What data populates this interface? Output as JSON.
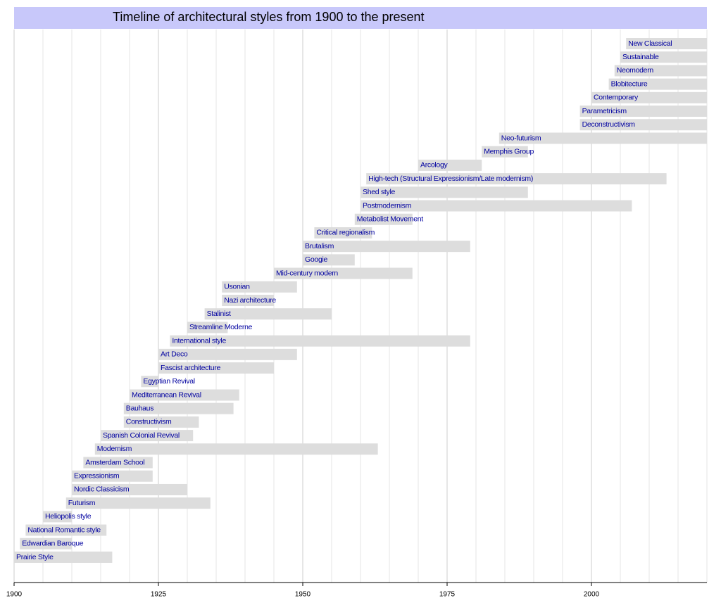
{
  "chart_data": {
    "type": "timeline",
    "title": "Timeline of architectural styles from 1900 to the present",
    "xlim": [
      1900,
      2020
    ],
    "xticks": [
      1900,
      1925,
      1950,
      1975,
      2000
    ],
    "xminorticks": [
      1905,
      1910,
      1915,
      1920,
      1930,
      1935,
      1940,
      1945,
      1955,
      1960,
      1965,
      1970,
      1980,
      1985,
      1990,
      1995,
      2005,
      2010,
      2015,
      2020
    ],
    "grid": true,
    "color": "#dddddd",
    "bars": [
      {
        "label": "New Classical",
        "start": 2006,
        "end": 2020
      },
      {
        "label": "Sustainable",
        "start": 2005,
        "end": 2020
      },
      {
        "label": "Neomodern",
        "start": 2004,
        "end": 2020
      },
      {
        "label": "Blobitecture",
        "start": 2003,
        "end": 2020
      },
      {
        "label": "Contemporary",
        "start": 2000,
        "end": 2020
      },
      {
        "label": "Parametricism",
        "start": 1998,
        "end": 2020
      },
      {
        "label": "Deconstructivism",
        "start": 1998,
        "end": 2020
      },
      {
        "label": "Neo-futurism",
        "start": 1984,
        "end": 2020
      },
      {
        "label": "Memphis Group",
        "start": 1981,
        "end": 1989
      },
      {
        "label": "Arcology",
        "start": 1970,
        "end": 1981
      },
      {
        "label": "High-tech (Structural Expressionism/Late modernism)",
        "start": 1961,
        "end": 2013
      },
      {
        "label": "Shed style",
        "start": 1960,
        "end": 1989
      },
      {
        "label": "Postmodernism",
        "start": 1960,
        "end": 2007
      },
      {
        "label": "Metabolist Movement",
        "start": 1959,
        "end": 1969
      },
      {
        "label": "Critical regionalism",
        "start": 1952,
        "end": 1962
      },
      {
        "label": "Brutalism",
        "start": 1950,
        "end": 1979
      },
      {
        "label": "Googie",
        "start": 1950,
        "end": 1959
      },
      {
        "label": "Mid-century modern",
        "start": 1945,
        "end": 1969
      },
      {
        "label": "Usonian",
        "start": 1936,
        "end": 1949
      },
      {
        "label": "Nazi architecture",
        "start": 1936,
        "end": 1945
      },
      {
        "label": "Stalinist",
        "start": 1933,
        "end": 1955
      },
      {
        "label": "Streamline Moderne",
        "start": 1930,
        "end": 1937
      },
      {
        "label": "International style",
        "start": 1927,
        "end": 1979
      },
      {
        "label": "Art Deco",
        "start": 1925,
        "end": 1949
      },
      {
        "label": "Fascist architecture",
        "start": 1925,
        "end": 1945
      },
      {
        "label": "Egyptian Revival",
        "start": 1922,
        "end": 1925
      },
      {
        "label": "Mediterranean Revival",
        "start": 1920,
        "end": 1939
      },
      {
        "label": "Bauhaus",
        "start": 1919,
        "end": 1938
      },
      {
        "label": "Constructivism",
        "start": 1919,
        "end": 1932
      },
      {
        "label": "Spanish Colonial Revival",
        "start": 1915,
        "end": 1931
      },
      {
        "label": "Modernism",
        "start": 1914,
        "end": 1963
      },
      {
        "label": "Amsterdam School",
        "start": 1912,
        "end": 1924
      },
      {
        "label": "Expressionism",
        "start": 1910,
        "end": 1924
      },
      {
        "label": "Nordic Classicism",
        "start": 1910,
        "end": 1930
      },
      {
        "label": "Futurism",
        "start": 1909,
        "end": 1934
      },
      {
        "label": "Heliopolis style",
        "start": 1905,
        "end": 1910
      },
      {
        "label": "National Romantic style",
        "start": 1902,
        "end": 1916
      },
      {
        "label": "Edwardian Baroque",
        "start": 1901,
        "end": 1910
      },
      {
        "label": "Prairie Style",
        "start": 1900,
        "end": 1917
      }
    ]
  }
}
